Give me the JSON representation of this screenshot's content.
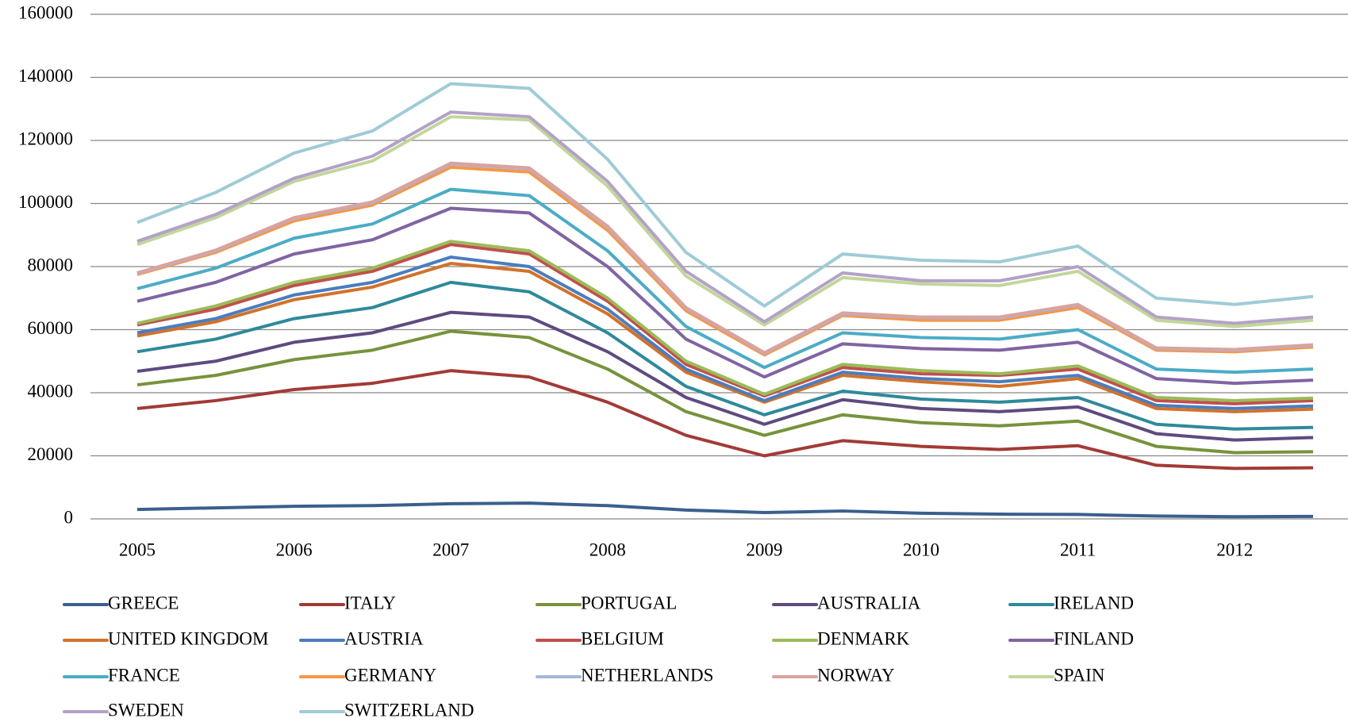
{
  "chart_data": {
    "type": "line",
    "categories": [
      "2005",
      null,
      "2006",
      null,
      "2007",
      null,
      "2008",
      null,
      "2009",
      null,
      "2010",
      null,
      "2011",
      null,
      "2012",
      null
    ],
    "ylim": [
      0,
      160000
    ],
    "yticks": [
      0,
      20000,
      40000,
      60000,
      80000,
      100000,
      120000,
      140000,
      160000
    ],
    "grid": true,
    "legend": "bottom",
    "series": [
      {
        "name": "GREECE",
        "color": "#3a5f8f",
        "values": [
          3000,
          3500,
          4000,
          4200,
          4800,
          5000,
          4200,
          2800,
          2000,
          2500,
          1800,
          1500,
          1400,
          900,
          700,
          800
        ]
      },
      {
        "name": "ITALY",
        "color": "#a33a36",
        "values": [
          35000,
          37500,
          41000,
          43000,
          47000,
          45000,
          37000,
          26500,
          20000,
          24800,
          23000,
          22000,
          23200,
          17000,
          16000,
          16200
        ]
      },
      {
        "name": "PORTUGAL",
        "color": "#77933c",
        "values": [
          42500,
          45500,
          50500,
          53500,
          59500,
          57500,
          47500,
          34000,
          26500,
          33000,
          30500,
          29500,
          31000,
          23000,
          21000,
          21300
        ]
      },
      {
        "name": "AUSTRALIA",
        "color": "#5f4a7f",
        "values": [
          46800,
          50000,
          56000,
          59000,
          65500,
          64000,
          53000,
          38500,
          30000,
          37800,
          35000,
          34000,
          35500,
          27000,
          25000,
          25800
        ]
      },
      {
        "name": "IRELAND",
        "color": "#2e8a9a",
        "values": [
          53000,
          57000,
          63500,
          67000,
          75000,
          72000,
          59000,
          42000,
          33000,
          40500,
          38000,
          37000,
          38500,
          30000,
          28500,
          29000
        ]
      },
      {
        "name": "UNITED KINGDOM",
        "color": "#d2722a",
        "values": [
          58000,
          62500,
          69500,
          73500,
          81000,
          78500,
          65000,
          46500,
          37000,
          45500,
          43500,
          42000,
          44500,
          35000,
          34000,
          34800
        ]
      },
      {
        "name": "AUSTRIA",
        "color": "#4a7dbf",
        "values": [
          59000,
          63500,
          71000,
          75000,
          83000,
          80000,
          66500,
          47500,
          37500,
          46500,
          44500,
          43500,
          45500,
          36000,
          35000,
          35800
        ]
      },
      {
        "name": "BELGIUM",
        "color": "#c0504d",
        "values": [
          61500,
          66500,
          74000,
          78500,
          87000,
          84000,
          69000,
          49000,
          39000,
          48000,
          46000,
          45500,
          47500,
          37500,
          36500,
          37500
        ]
      },
      {
        "name": "DENMARK",
        "color": "#9bbb59",
        "values": [
          62000,
          67500,
          75000,
          79500,
          88000,
          85000,
          70000,
          50000,
          39500,
          49000,
          47000,
          46000,
          48500,
          38500,
          37500,
          38300
        ]
      },
      {
        "name": "FINLAND",
        "color": "#8064a2",
        "values": [
          69000,
          75000,
          84000,
          88500,
          98500,
          97000,
          80000,
          57000,
          45000,
          55500,
          54000,
          53500,
          56000,
          44500,
          43000,
          44000
        ]
      },
      {
        "name": "FRANCE",
        "color": "#4bacc6",
        "values": [
          73000,
          79500,
          89000,
          93500,
          104500,
          102500,
          85000,
          61000,
          48000,
          59000,
          57500,
          57000,
          60000,
          47500,
          46500,
          47500
        ]
      },
      {
        "name": "GERMANY",
        "color": "#f79646",
        "values": [
          77500,
          84500,
          94500,
          99500,
          111500,
          110000,
          91500,
          66000,
          52000,
          64500,
          63000,
          63000,
          67000,
          53500,
          53000,
          54500
        ]
      },
      {
        "name": "NETHERLANDS",
        "color": "#a5b6d9",
        "values": [
          77800,
          85000,
          95300,
          100200,
          112500,
          111000,
          92500,
          66800,
          52500,
          65000,
          63800,
          63700,
          67800,
          54000,
          53500,
          55000
        ]
      },
      {
        "name": "NORWAY",
        "color": "#d9a3a0",
        "values": [
          78000,
          85200,
          95500,
          100500,
          112800,
          111300,
          92800,
          67000,
          52700,
          65300,
          64000,
          64000,
          68000,
          54200,
          53700,
          55200
        ]
      },
      {
        "name": "SPAIN",
        "color": "#c3d69b",
        "values": [
          87000,
          95500,
          107000,
          113500,
          127500,
          126500,
          105500,
          77000,
          61500,
          76500,
          74500,
          74000,
          78500,
          63000,
          61000,
          63000
        ]
      },
      {
        "name": "SWEDEN",
        "color": "#b3a2c7",
        "values": [
          88000,
          96500,
          108000,
          115000,
          129000,
          127500,
          107000,
          78500,
          62500,
          78000,
          75500,
          75500,
          80000,
          64000,
          62000,
          64000
        ]
      },
      {
        "name": "SWITZERLAND",
        "color": "#9fcbd6",
        "values": [
          94000,
          103500,
          116000,
          123000,
          138000,
          136500,
          114000,
          84500,
          67500,
          84000,
          82000,
          81500,
          86500,
          70000,
          68000,
          70500
        ]
      }
    ]
  }
}
